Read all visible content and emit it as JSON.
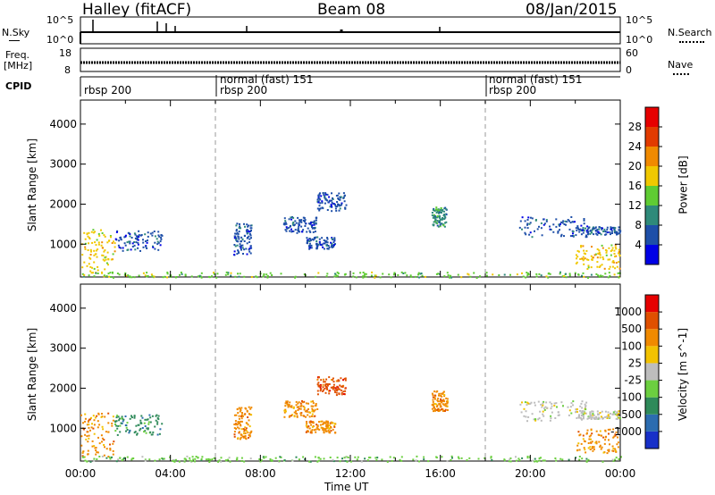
{
  "header": {
    "title": "Halley (fitACF)",
    "beam": "Beam 08",
    "date": "08/Jan/2015"
  },
  "nsky_panel": {
    "left_label": "N.Sky",
    "left_ticks": [
      "10^5",
      "10^0"
    ],
    "right_label": "N.Search",
    "right_ticks": [
      "10^5",
      "10^0"
    ]
  },
  "freq_panel": {
    "left_label_1": "Freq.",
    "left_label_2": "[MHz]",
    "left_ticks": [
      "18",
      "8"
    ],
    "right_label": "Nave",
    "right_ticks": [
      "60",
      "0"
    ]
  },
  "cpid_panel": {
    "label": "CPID",
    "segments": [
      {
        "name": "rbsp 200",
        "start_hour": 0
      },
      {
        "name": "normal (fast) 151",
        "start_hour": 6
      },
      {
        "name": "rbsp 200",
        "start_hour": 6
      },
      {
        "name": "normal (fast) 151",
        "start_hour": 18
      },
      {
        "name": "rbsp 200",
        "start_hour": 18
      }
    ]
  },
  "chart_data": [
    {
      "type": "heatmap",
      "title": "",
      "ylabel": "Slant Range [km]",
      "xlabel": "",
      "xlim": [
        0,
        24
      ],
      "ylim": [
        180,
        4600
      ],
      "yticks": [
        "1000",
        "2000",
        "3000",
        "4000"
      ],
      "colorbar": {
        "label": "Power [dB]",
        "ticks": [
          "4",
          "8",
          "12",
          "16",
          "20",
          "24",
          "28"
        ],
        "colors": [
          "#0000e6",
          "#1e4fa8",
          "#2f8a7a",
          "#5fcc33",
          "#f0c800",
          "#f08a00",
          "#e23b00",
          "#e60000"
        ]
      },
      "echo_regions": [
        {
          "t0": 0.0,
          "t1": 1.5,
          "r0": 300,
          "r1": 1400,
          "level": 4
        },
        {
          "t0": 1.5,
          "t1": 3.6,
          "r0": 850,
          "r1": 1350,
          "level": 1
        },
        {
          "t0": 6.8,
          "t1": 7.6,
          "r0": 750,
          "r1": 1550,
          "level": 1
        },
        {
          "t0": 9.0,
          "t1": 10.5,
          "r0": 1300,
          "r1": 1700,
          "level": 1
        },
        {
          "t0": 10.5,
          "t1": 11.8,
          "r0": 1850,
          "r1": 2300,
          "level": 1
        },
        {
          "t0": 10.0,
          "t1": 11.3,
          "r0": 900,
          "r1": 1200,
          "level": 1
        },
        {
          "t0": 15.6,
          "t1": 16.3,
          "r0": 1450,
          "r1": 1950,
          "level": 2
        },
        {
          "t0": 19.5,
          "t1": 22.5,
          "r0": 1200,
          "r1": 1700,
          "level": 1
        },
        {
          "t0": 22.0,
          "t1": 24.0,
          "r0": 1250,
          "r1": 1450,
          "level": 1
        },
        {
          "t0": 22.0,
          "t1": 24.0,
          "r0": 400,
          "r1": 1000,
          "level": 4
        },
        {
          "t0": 0.0,
          "t1": 24.0,
          "r0": 180,
          "r1": 320,
          "level": 3
        }
      ]
    },
    {
      "type": "heatmap",
      "title": "",
      "ylabel": "Slant Range [km]",
      "xlabel": "Time UT",
      "xlim": [
        0,
        24
      ],
      "ylim": [
        180,
        4600
      ],
      "yticks": [
        "1000",
        "2000",
        "3000",
        "4000"
      ],
      "xticks": [
        "00:00",
        "04:00",
        "08:00",
        "12:00",
        "16:00",
        "20:00",
        "00:00"
      ],
      "colorbar": {
        "label": "Velocity [m s^-1]",
        "ticks": [
          "1000",
          "500",
          "100",
          "25",
          "-25",
          "-100",
          "-500",
          "-1000"
        ],
        "colors": [
          "#1830c8",
          "#2c6cb0",
          "#2f8a5a",
          "#6ccf40",
          "#bdbdbd",
          "#f2c200",
          "#f08a00",
          "#e05000",
          "#e60000"
        ]
      },
      "echo_regions": [
        {
          "t0": 0.0,
          "t1": 1.5,
          "r0": 300,
          "r1": 1400,
          "level": 6
        },
        {
          "t0": 1.5,
          "t1": 3.6,
          "r0": 850,
          "r1": 1350,
          "level": 2
        },
        {
          "t0": 6.8,
          "t1": 7.6,
          "r0": 750,
          "r1": 1550,
          "level": 6
        },
        {
          "t0": 9.0,
          "t1": 10.5,
          "r0": 1300,
          "r1": 1700,
          "level": 6
        },
        {
          "t0": 10.5,
          "t1": 11.8,
          "r0": 1850,
          "r1": 2300,
          "level": 7
        },
        {
          "t0": 10.0,
          "t1": 11.3,
          "r0": 900,
          "r1": 1200,
          "level": 6
        },
        {
          "t0": 15.6,
          "t1": 16.3,
          "r0": 1450,
          "r1": 1950,
          "level": 6
        },
        {
          "t0": 19.5,
          "t1": 22.5,
          "r0": 1200,
          "r1": 1700,
          "level": 4
        },
        {
          "t0": 22.0,
          "t1": 24.0,
          "r0": 1250,
          "r1": 1450,
          "level": 4
        },
        {
          "t0": 22.0,
          "t1": 24.0,
          "r0": 400,
          "r1": 1000,
          "level": 6
        },
        {
          "t0": 0.0,
          "t1": 24.0,
          "r0": 180,
          "r1": 320,
          "level": 3
        }
      ]
    }
  ]
}
